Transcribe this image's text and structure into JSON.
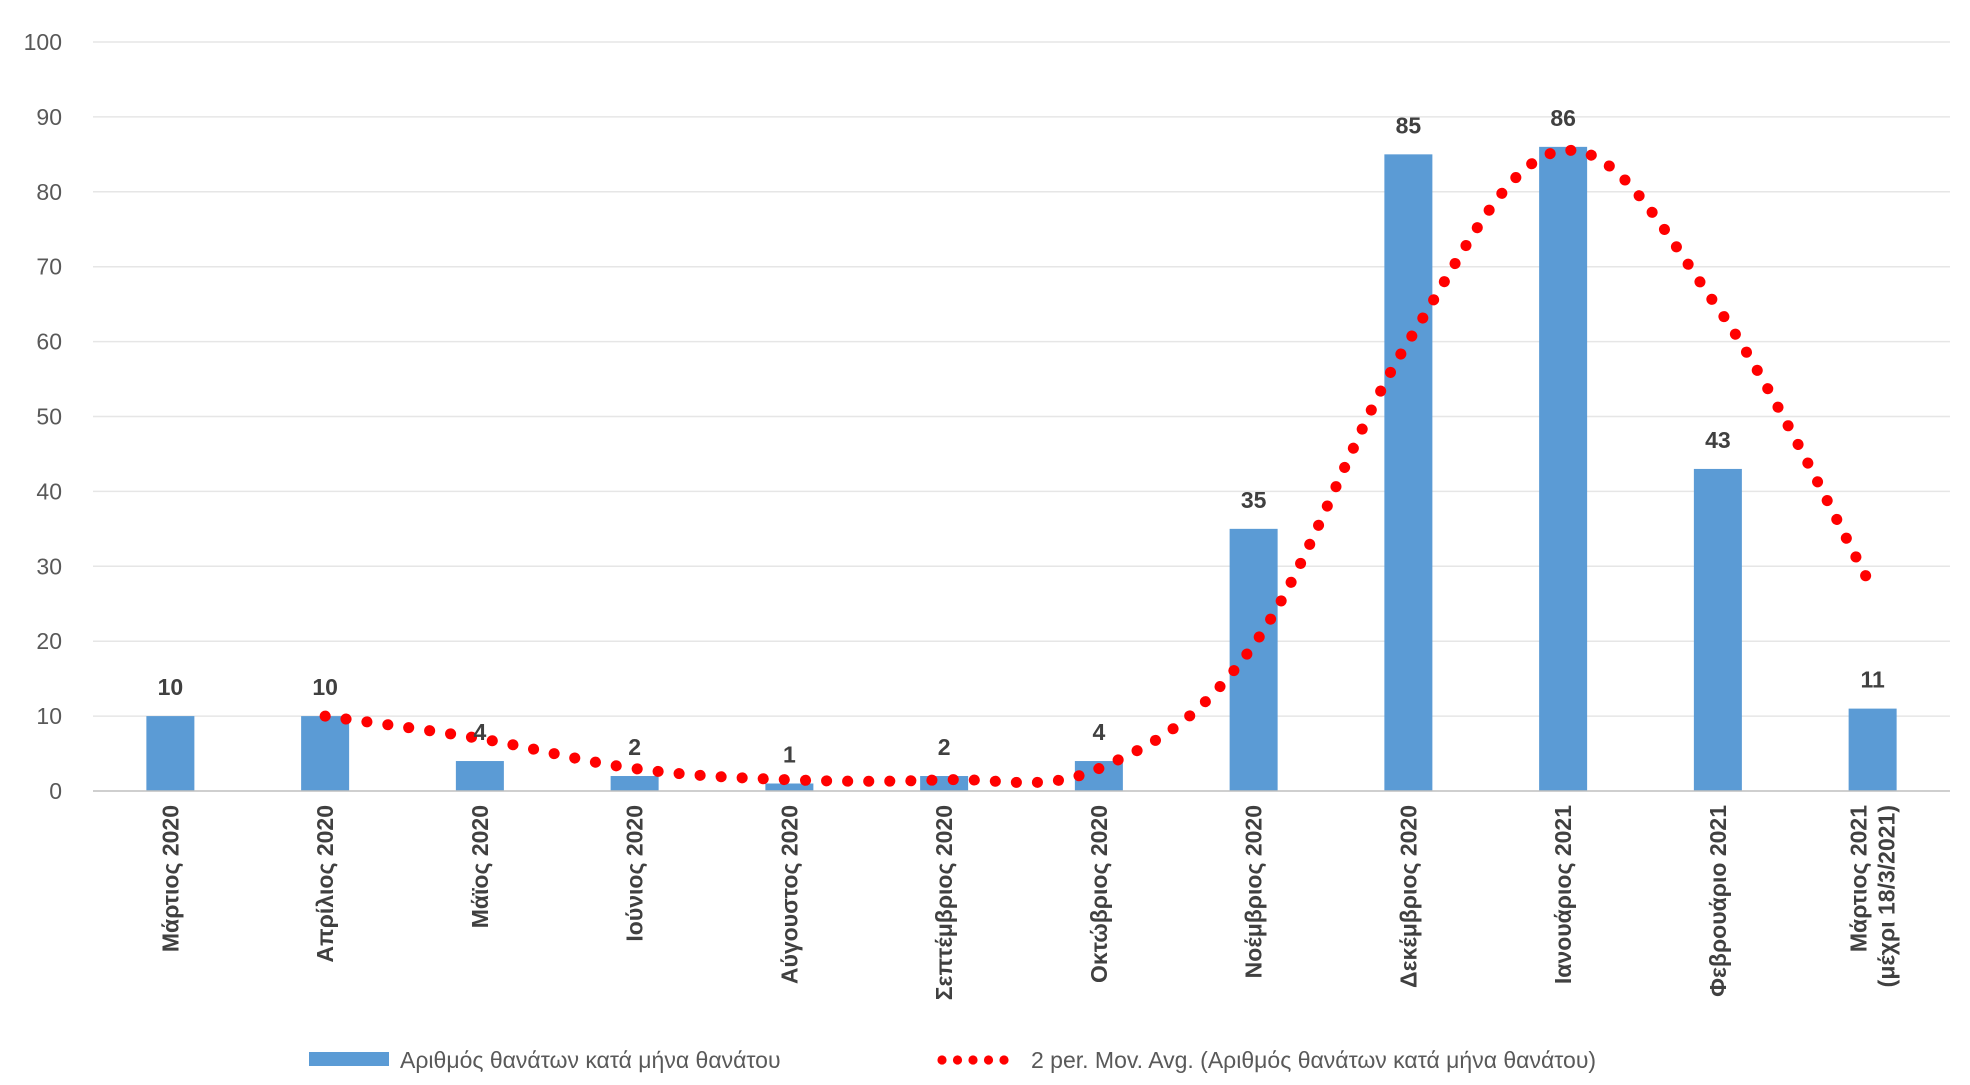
{
  "chart_data": {
    "type": "bar",
    "categories": [
      "Μάρτιος 2020",
      "Απρίλιος 2020",
      "Μάϊος 2020",
      "Ιούνιος 2020",
      "Αύγουστος 2020",
      "Σεπτέμβριος 2020",
      "Οκτώβριος 2020",
      "Νοέμβριος 2020",
      "Δεκέμβριος 2020",
      "Ιανουάριος 2021",
      "Φεβρουάριο 2021",
      "Μάρτιος 2021\n(μέχρι 18/3/2021)"
    ],
    "series": [
      {
        "name": "Αριθμός θανάτων κατά μήνα θανάτου",
        "type": "bar",
        "color": "#5b9bd5",
        "values": [
          10,
          10,
          4,
          2,
          1,
          2,
          4,
          35,
          85,
          86,
          43,
          11
        ]
      },
      {
        "name": "2 per. Mov. Avg. (Αριθμός θανάτων κατά μήνα θανάτου)",
        "type": "line",
        "style": "dotted",
        "color": "#ff0000",
        "values": [
          null,
          10,
          7,
          3,
          1.5,
          1.5,
          3,
          19.5,
          60,
          85.5,
          64.5,
          27
        ]
      }
    ],
    "yticks": [
      0,
      10,
      20,
      30,
      40,
      50,
      60,
      70,
      80,
      90,
      100
    ],
    "ylim": [
      0,
      100
    ],
    "title": "",
    "xlabel": "",
    "ylabel": "",
    "grid": "horizontal",
    "legend_position": "bottom"
  }
}
